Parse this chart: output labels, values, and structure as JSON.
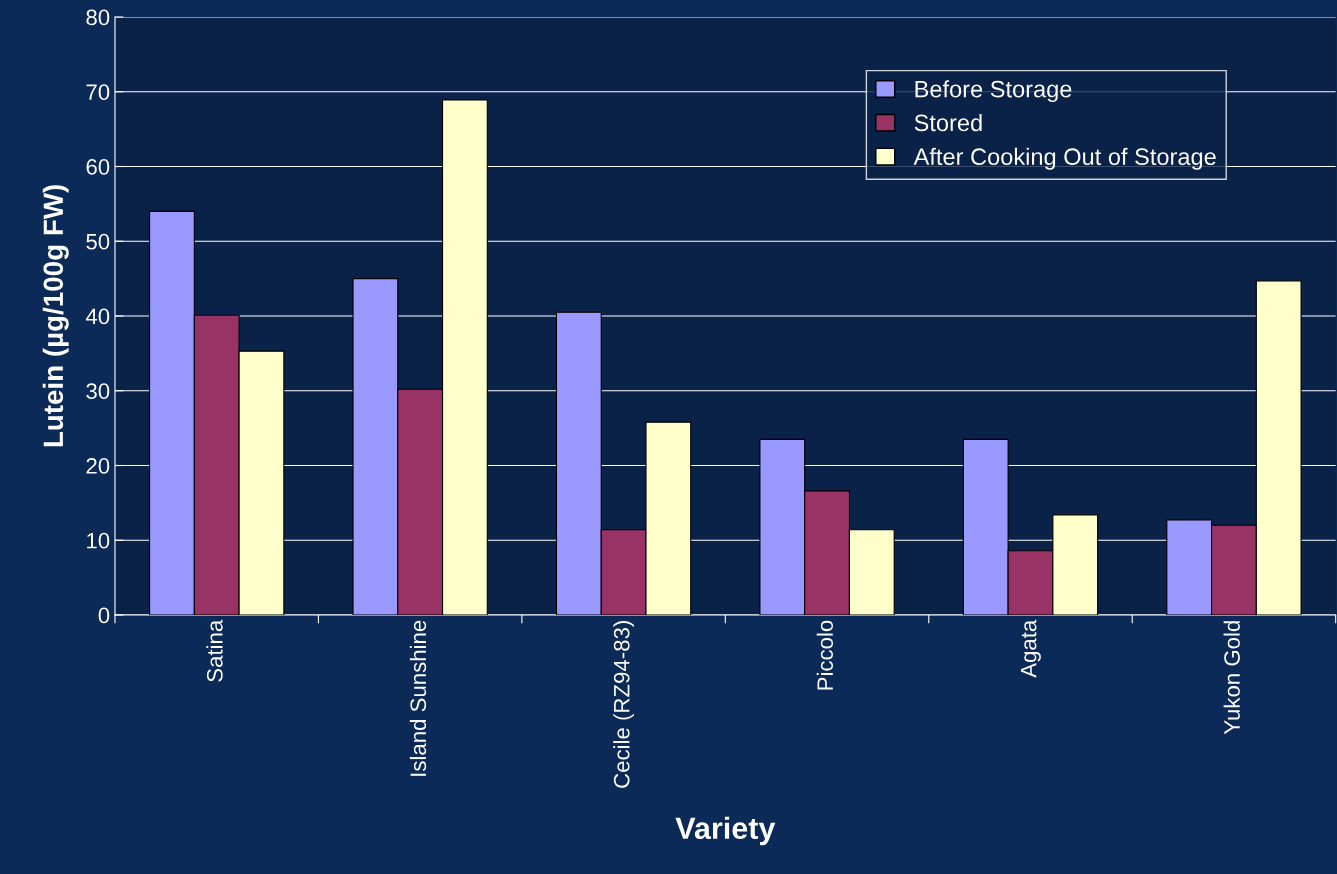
{
  "chart_data": {
    "type": "bar",
    "xlabel": "Variety",
    "ylabel": "Lutein (µg/100g FW)",
    "categories": [
      "Satina",
      "Island Sunshine",
      "Cecile (RZ94-83)",
      "Piccolo",
      "Agata",
      "Yukon Gold"
    ],
    "series": [
      {
        "name": "Before Storage",
        "color": "#9999ff",
        "values": [
          54,
          45,
          40.5,
          23.5,
          23.5,
          12.7
        ]
      },
      {
        "name": "Stored",
        "color": "#993366",
        "values": [
          40.1,
          30.2,
          11.4,
          16.6,
          8.6,
          12.0
        ]
      },
      {
        "name": "After Cooking Out of Storage",
        "color": "#ffffcc",
        "values": [
          35.3,
          68.9,
          25.8,
          11.4,
          13.4,
          44.7
        ]
      }
    ],
    "ylim": [
      0,
      80
    ],
    "yticks": [
      0,
      10,
      20,
      30,
      40,
      50,
      60,
      70,
      80
    ],
    "grid": "y",
    "legend": "top right"
  }
}
